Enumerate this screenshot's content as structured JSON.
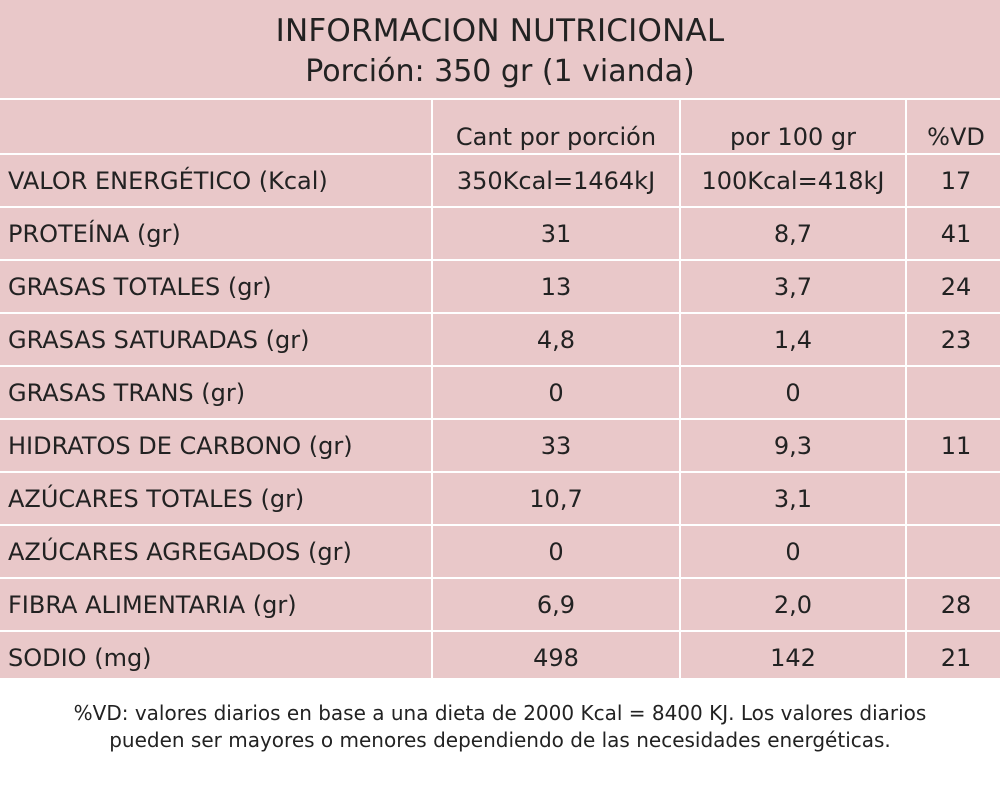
{
  "header": {
    "title": "INFORMACION NUTRICIONAL",
    "subtitle": "Porción: 350 gr (1 vianda)"
  },
  "table": {
    "columns": [
      "",
      "Cant por porción",
      "por 100 gr",
      "%VD"
    ],
    "rows": [
      {
        "name": "VALOR ENERGÉTICO  (Kcal)",
        "portion": "350Kcal=1464kJ",
        "per100": "100Kcal=418kJ",
        "vd": "17"
      },
      {
        "name": "PROTEÍNA (gr)",
        "portion": "31",
        "per100": "8,7",
        "vd": "41"
      },
      {
        "name": "GRASAS TOTALES (gr)",
        "portion": "13",
        "per100": "3,7",
        "vd": "24"
      },
      {
        "name": "GRASAS SATURADAS (gr)",
        "portion": "4,8",
        "per100": "1,4",
        "vd": "23"
      },
      {
        "name": "GRASAS TRANS (gr)",
        "portion": "0",
        "per100": "0",
        "vd": ""
      },
      {
        "name": "HIDRATOS DE CARBONO (gr)",
        "portion": "33",
        "per100": "9,3",
        "vd": "11"
      },
      {
        "name": "AZÚCARES TOTALES (gr)",
        "portion": "10,7",
        "per100": "3,1",
        "vd": ""
      },
      {
        "name": "AZÚCARES AGREGADOS (gr)",
        "portion": "0",
        "per100": "0",
        "vd": ""
      },
      {
        "name": "FIBRA ALIMENTARIA (gr)",
        "portion": "6,9",
        "per100": "2,0",
        "vd": "28"
      },
      {
        "name": "SODIO (mg)",
        "portion": "498",
        "per100": "142",
        "vd": "21"
      }
    ]
  },
  "footnote": {
    "line1": "%VD:  valores diarios en base a una dieta de 2000 Kcal = 8400 KJ. Los valores diarios",
    "line2": "pueden ser mayores o menores dependiendo de las necesidades energéticas."
  },
  "colors": {
    "panel_background": "#e9c8c9",
    "divider": "#ffffff",
    "text": "#222222"
  }
}
